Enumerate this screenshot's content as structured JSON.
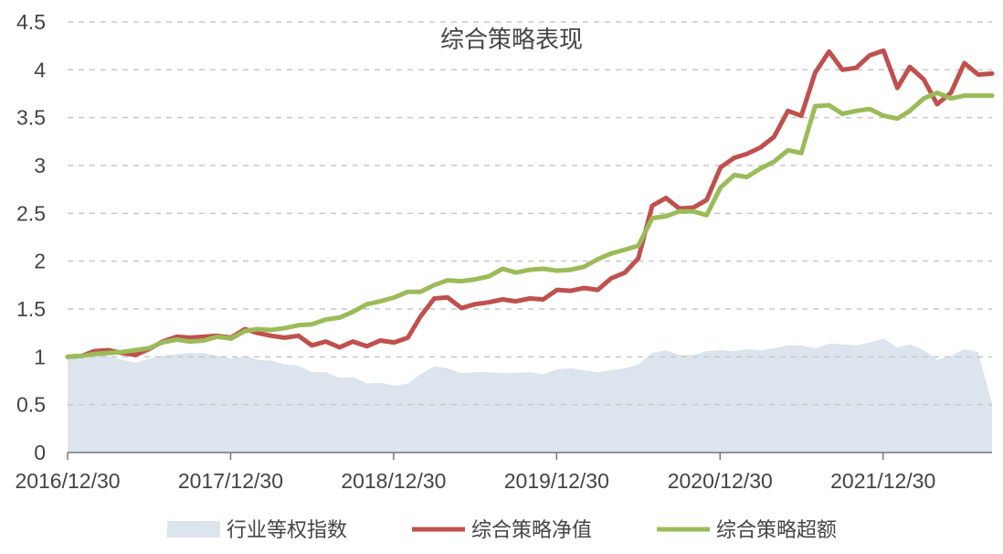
{
  "chart_data": {
    "type": "line",
    "title": "综合策略表现",
    "xlabel": "",
    "ylabel": "",
    "ylim": [
      0,
      4.5
    ],
    "yticks": [
      "0",
      "0.5",
      "1",
      "1.5",
      "2",
      "2.5",
      "3",
      "3.5",
      "4",
      "4.5"
    ],
    "xticks": [
      "2016/12/30",
      "2017/12/30",
      "2018/12/30",
      "2019/12/30",
      "2020/12/30",
      "2021/12/30"
    ],
    "xrange": [
      "2016/12/30",
      "2022/08/31"
    ],
    "grid": "horizontal-dashed",
    "legend_position": "bottom",
    "dates": [
      "2016-12-30",
      "2017-01-31",
      "2017-02-28",
      "2017-03-31",
      "2017-04-30",
      "2017-05-31",
      "2017-06-30",
      "2017-07-31",
      "2017-08-31",
      "2017-09-30",
      "2017-10-31",
      "2017-11-30",
      "2017-12-31",
      "2018-01-31",
      "2018-02-28",
      "2018-03-31",
      "2018-04-30",
      "2018-05-31",
      "2018-06-30",
      "2018-07-31",
      "2018-08-31",
      "2018-09-30",
      "2018-10-31",
      "2018-11-30",
      "2018-12-31",
      "2019-01-31",
      "2019-02-28",
      "2019-03-31",
      "2019-04-30",
      "2019-05-31",
      "2019-06-30",
      "2019-07-31",
      "2019-08-31",
      "2019-09-30",
      "2019-10-31",
      "2019-11-30",
      "2019-12-31",
      "2020-01-31",
      "2020-02-29",
      "2020-03-31",
      "2020-04-30",
      "2020-05-31",
      "2020-06-30",
      "2020-07-31",
      "2020-08-31",
      "2020-09-30",
      "2020-10-31",
      "2020-11-30",
      "2020-12-31",
      "2021-01-31",
      "2021-02-28",
      "2021-03-31",
      "2021-04-30",
      "2021-05-31",
      "2021-06-30",
      "2021-07-31",
      "2021-08-31",
      "2021-09-30",
      "2021-10-31",
      "2021-11-30",
      "2021-12-31",
      "2022-01-31",
      "2022-02-28",
      "2022-03-31",
      "2022-04-30",
      "2022-05-31",
      "2022-06-30",
      "2022-07-31",
      "2022-08-31"
    ],
    "series": [
      {
        "name": "行业等权指数",
        "kind": "area",
        "color": "#dce4ee",
        "values": [
          1.0,
          1.02,
          1.03,
          1.01,
          0.97,
          0.94,
          0.98,
          1.01,
          1.03,
          1.04,
          1.04,
          1.01,
          0.98,
          1.01,
          0.97,
          0.96,
          0.92,
          0.91,
          0.84,
          0.84,
          0.78,
          0.79,
          0.72,
          0.73,
          0.7,
          0.72,
          0.82,
          0.9,
          0.88,
          0.83,
          0.84,
          0.84,
          0.83,
          0.83,
          0.84,
          0.82,
          0.87,
          0.88,
          0.86,
          0.84,
          0.86,
          0.88,
          0.92,
          1.04,
          1.07,
          1.02,
          1.02,
          1.06,
          1.07,
          1.06,
          1.08,
          1.07,
          1.09,
          1.12,
          1.12,
          1.09,
          1.14,
          1.13,
          1.12,
          1.15,
          1.19,
          1.1,
          1.13,
          1.07,
          0.97,
          1.01,
          1.08,
          1.05,
          0.51
        ]
      },
      {
        "name": "综合策略净值",
        "kind": "line",
        "color": "#c0504d",
        "values": [
          1.0,
          1.01,
          1.06,
          1.07,
          1.04,
          1.02,
          1.08,
          1.16,
          1.21,
          1.2,
          1.21,
          1.22,
          1.2,
          1.29,
          1.25,
          1.22,
          1.2,
          1.22,
          1.12,
          1.16,
          1.1,
          1.16,
          1.11,
          1.17,
          1.15,
          1.2,
          1.42,
          1.61,
          1.62,
          1.51,
          1.55,
          1.57,
          1.6,
          1.58,
          1.61,
          1.6,
          1.7,
          1.69,
          1.72,
          1.7,
          1.82,
          1.88,
          2.03,
          2.58,
          2.66,
          2.55,
          2.56,
          2.64,
          2.98,
          3.08,
          3.12,
          3.19,
          3.3,
          3.57,
          3.52,
          3.97,
          4.19,
          4.0,
          4.02,
          4.15,
          4.2,
          3.81,
          4.03,
          3.9,
          3.64,
          3.76,
          4.07,
          3.95,
          3.96
        ]
      },
      {
        "name": "综合策略超额",
        "kind": "line",
        "color": "#9bbb59",
        "values": [
          1.0,
          1.01,
          1.03,
          1.04,
          1.05,
          1.07,
          1.09,
          1.15,
          1.18,
          1.16,
          1.17,
          1.21,
          1.19,
          1.27,
          1.29,
          1.28,
          1.3,
          1.33,
          1.34,
          1.39,
          1.41,
          1.47,
          1.55,
          1.58,
          1.62,
          1.68,
          1.68,
          1.75,
          1.8,
          1.79,
          1.81,
          1.84,
          1.92,
          1.88,
          1.91,
          1.92,
          1.9,
          1.91,
          1.94,
          2.02,
          2.08,
          2.12,
          2.16,
          2.45,
          2.47,
          2.52,
          2.52,
          2.48,
          2.77,
          2.9,
          2.88,
          2.97,
          3.04,
          3.16,
          3.13,
          3.62,
          3.63,
          3.54,
          3.57,
          3.59,
          3.52,
          3.49,
          3.57,
          3.7,
          3.76,
          3.7,
          3.73,
          3.73,
          3.73
        ]
      }
    ]
  }
}
